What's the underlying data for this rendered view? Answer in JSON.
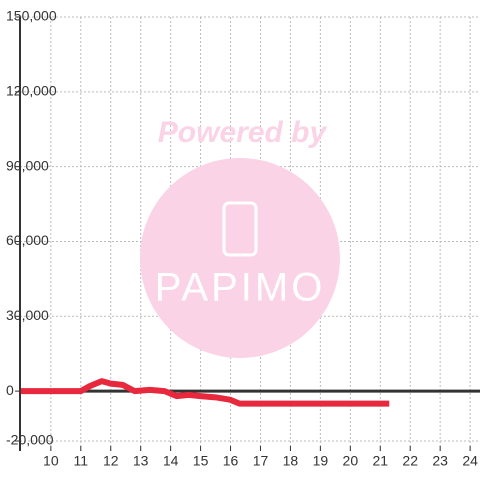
{
  "chart_data": {
    "type": "line",
    "x": [
      9,
      11,
      11.3,
      11.7,
      12,
      12.4,
      12.8,
      13.3,
      13.8,
      14.2,
      14.6,
      15,
      15.5,
      16,
      16.3,
      17,
      18,
      19,
      20,
      21.3
    ],
    "series": [
      {
        "color": "#e8283c",
        "values": [
          0,
          0,
          2000,
          4000,
          3000,
          2500,
          0,
          500,
          0,
          -2000,
          -1500,
          -2000,
          -2500,
          -3500,
          -5000,
          -5000,
          -5000,
          -5000,
          -5000,
          -5000
        ]
      }
    ],
    "xlim": [
      8.97,
      24.33
    ],
    "xticks": [
      10,
      11,
      12,
      13,
      14,
      15,
      16,
      17,
      18,
      19,
      20,
      21,
      22,
      23,
      24
    ],
    "ylim": [
      -20000,
      150000
    ],
    "yticks": [
      {
        "value": -20000,
        "label": "-20,000"
      },
      0,
      {
        "value": 30000,
        "label": "30,000"
      },
      {
        "value": 60000,
        "label": "60,000"
      },
      {
        "value": 90000,
        "label": "90,000"
      },
      {
        "value": 120000,
        "label": "120,000"
      },
      {
        "value": 150000,
        "label": "150,000"
      }
    ],
    "grid": true,
    "watermark": [
      "Powered by",
      "PAPIMO"
    ]
  }
}
